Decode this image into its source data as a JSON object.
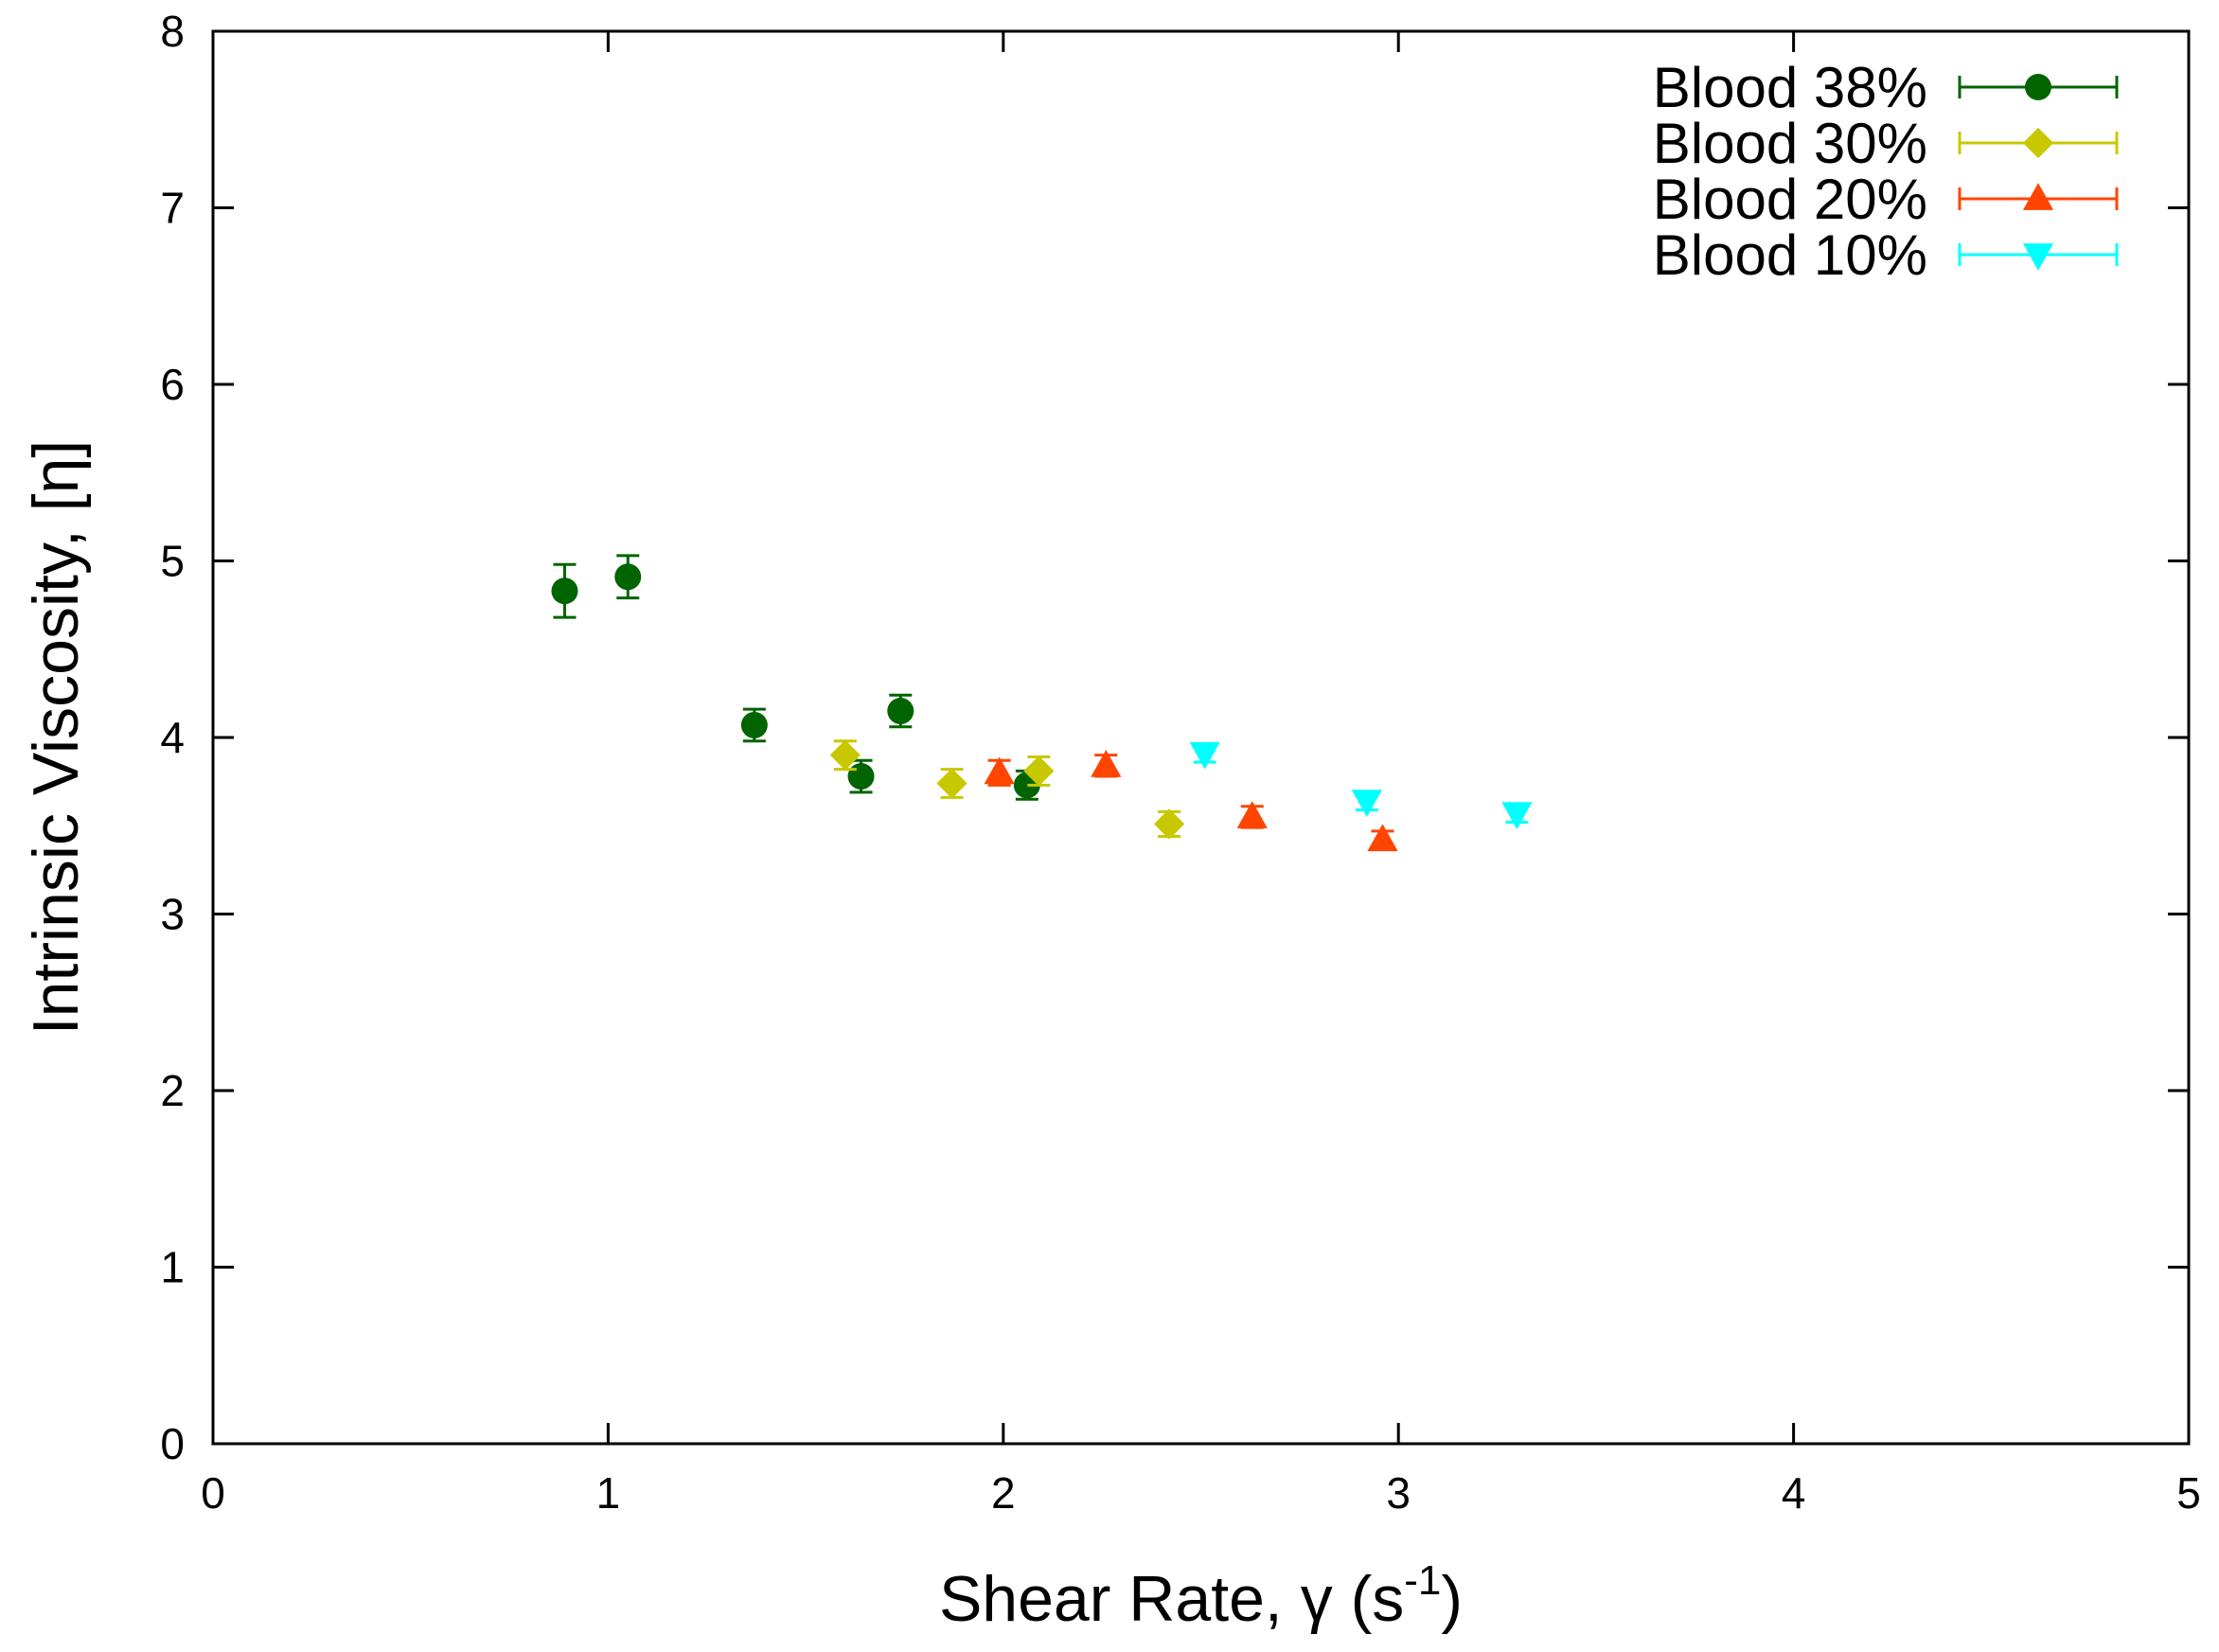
{
  "chart_data": {
    "type": "scatter",
    "title": "",
    "xlabel_main": "Shear Rate, ",
    "xlabel_symbol": "γ",
    "xlabel_unit_open": " (s",
    "xlabel_unit_exp": "-1",
    "xlabel_unit_close": ")",
    "ylabel": "Intrinsic Viscosity, [η]",
    "xlim": [
      0,
      5
    ],
    "ylim": [
      0,
      8
    ],
    "x_ticks": [
      "0",
      "1",
      "2",
      "3",
      "4",
      "5"
    ],
    "y_ticks": [
      "0",
      "1",
      "2",
      "3",
      "4",
      "5",
      "6",
      "7",
      "8"
    ],
    "grid": false,
    "legend_position": "top-right",
    "series": [
      {
        "name": "Blood 38%",
        "marker": "circle",
        "color": "#006400",
        "points": [
          {
            "x": 0.89,
            "y": 4.83,
            "err": 0.15
          },
          {
            "x": 1.05,
            "y": 4.91,
            "err": 0.12
          },
          {
            "x": 1.37,
            "y": 4.07,
            "err": 0.09
          },
          {
            "x": 1.64,
            "y": 3.78,
            "err": 0.09
          },
          {
            "x": 1.74,
            "y": 4.15,
            "err": 0.09
          },
          {
            "x": 2.06,
            "y": 3.73,
            "err": 0.08
          }
        ]
      },
      {
        "name": "Blood 30%",
        "marker": "diamond",
        "color": "#C8C800",
        "points": [
          {
            "x": 1.6,
            "y": 3.9,
            "err": 0.08
          },
          {
            "x": 1.87,
            "y": 3.74,
            "err": 0.08
          },
          {
            "x": 2.09,
            "y": 3.81,
            "err": 0.08
          },
          {
            "x": 2.42,
            "y": 3.51,
            "err": 0.07
          }
        ]
      },
      {
        "name": "Blood 20%",
        "marker": "triangle-up",
        "color": "#FF4500",
        "points": [
          {
            "x": 1.99,
            "y": 3.8,
            "err": 0.07
          },
          {
            "x": 2.26,
            "y": 3.84,
            "err": 0.06
          },
          {
            "x": 2.63,
            "y": 3.55,
            "err": 0.06
          },
          {
            "x": 2.96,
            "y": 3.42,
            "err": 0.05
          }
        ]
      },
      {
        "name": "Blood 10%",
        "marker": "triangle-down",
        "color": "#00FFFF",
        "points": [
          {
            "x": 2.51,
            "y": 3.91,
            "err": 0.05
          },
          {
            "x": 2.92,
            "y": 3.64,
            "err": 0.05
          },
          {
            "x": 3.3,
            "y": 3.57,
            "err": 0.05
          }
        ]
      }
    ]
  }
}
